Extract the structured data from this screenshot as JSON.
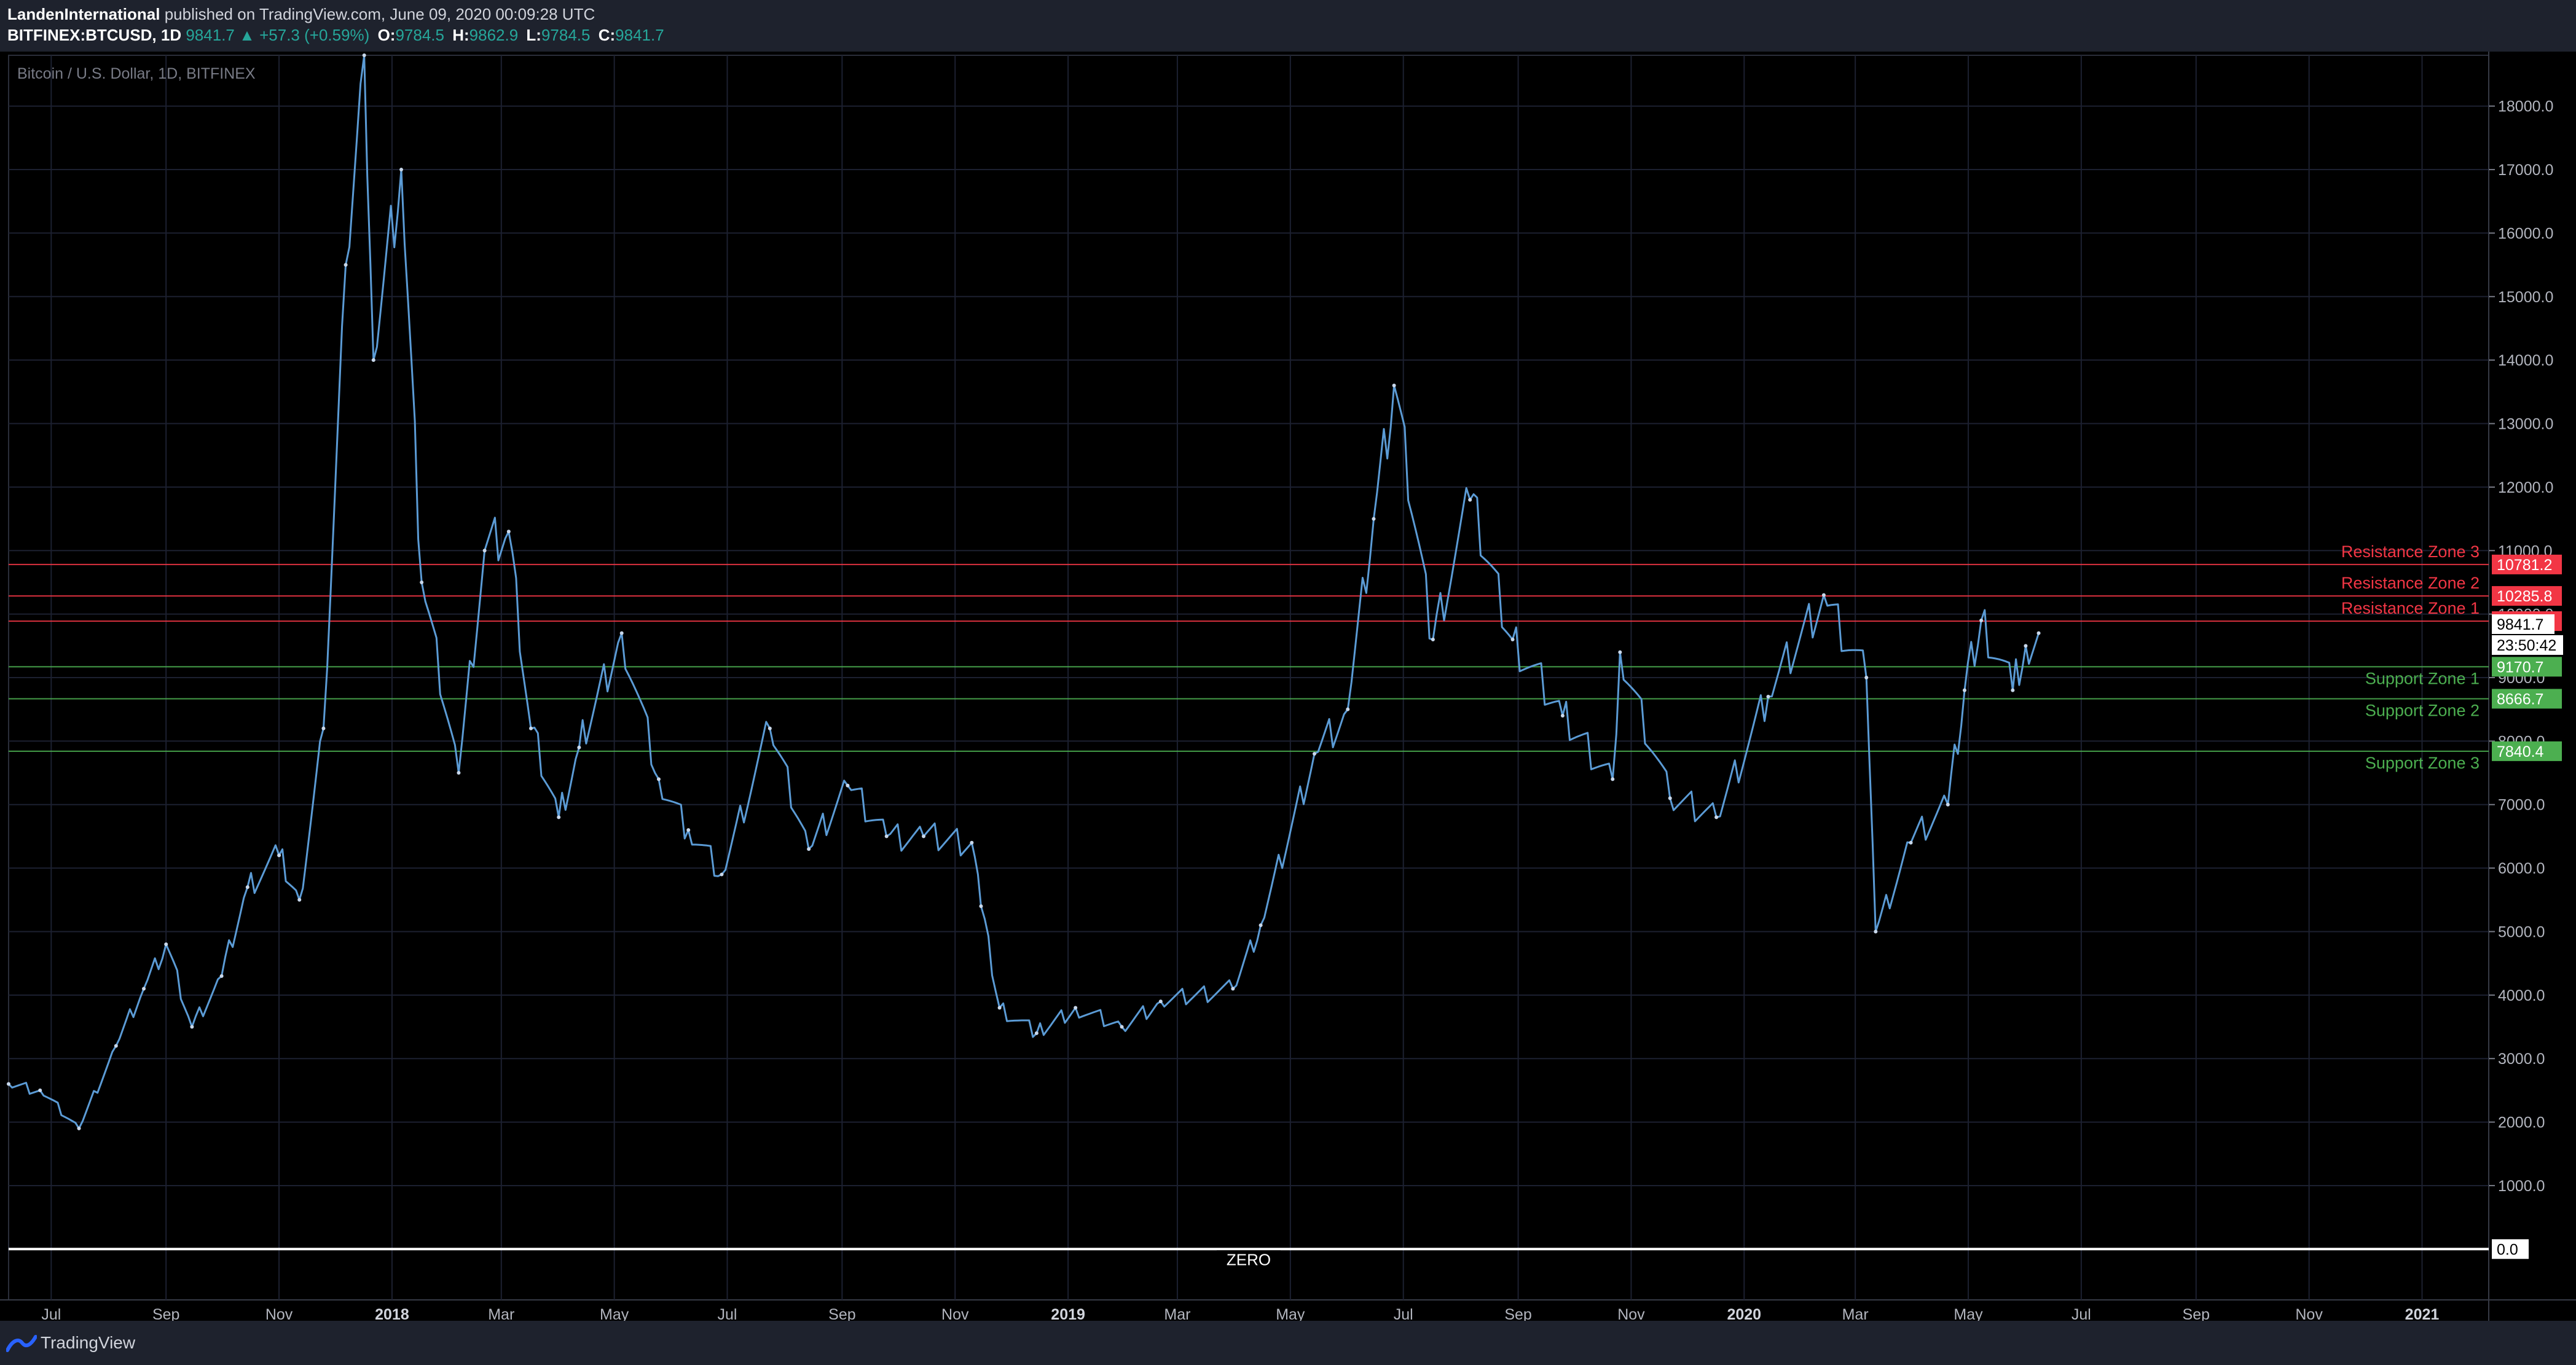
{
  "header": {
    "author": "LandenInternational",
    "published_text": "published on TradingView.com, June 09, 2020 00:09:28 UTC",
    "symbol": "BITFINEX:BTCUSD, 1D",
    "last": "9841.7",
    "change_arrow": "▲",
    "change": "+57.3 (+0.59%)",
    "open_label": "O:",
    "open": "9784.5",
    "high_label": "H:",
    "high": "9862.9",
    "low_label": "L:",
    "low": "9784.5",
    "close_label": "C:",
    "close": "9841.7"
  },
  "chart_data": {
    "type": "line",
    "title": "Bitcoin / U.S. Dollar, 1D, BITFINEX",
    "xlabel": "",
    "ylabel": "",
    "ylim": [
      -800,
      18800
    ],
    "y_ticks": [
      "18000.0",
      "17000.0",
      "16000.0",
      "15000.0",
      "14000.0",
      "13000.0",
      "12000.0",
      "11000.0",
      "10000.0",
      "9000.0",
      "8000.0",
      "7000.0",
      "6000.0",
      "5000.0",
      "4000.0",
      "3000.0",
      "2000.0",
      "1000.0"
    ],
    "y_tick_values": [
      18000,
      17000,
      16000,
      15000,
      14000,
      13000,
      12000,
      11000,
      10000,
      9000,
      8000,
      7000,
      6000,
      5000,
      4000,
      3000,
      2000,
      1000
    ],
    "x_ticks": [
      "Jul",
      "Sep",
      "Nov",
      "2018",
      "Mar",
      "May",
      "Jul",
      "Sep",
      "Nov",
      "2019",
      "Mar",
      "May",
      "Jul",
      "Sep",
      "Nov",
      "2020",
      "Mar",
      "May",
      "Jul",
      "Sep",
      "Nov",
      "2021"
    ],
    "x_tick_dates": [
      "2017-07-01",
      "2017-09-01",
      "2017-11-01",
      "2018-01-01",
      "2018-03-01",
      "2018-05-01",
      "2018-07-01",
      "2018-09-01",
      "2018-11-01",
      "2019-01-01",
      "2019-03-01",
      "2019-05-01",
      "2019-07-01",
      "2019-09-01",
      "2019-11-01",
      "2020-01-01",
      "2020-03-01",
      "2020-05-01",
      "2020-07-01",
      "2020-09-01",
      "2020-11-01",
      "2021-01-01"
    ],
    "x_range": [
      "2017-06-08",
      "2021-02-06"
    ],
    "grid": true,
    "series": [
      {
        "color": "#5b9bd5",
        "dates": [
          "2017-06-08",
          "2017-06-25",
          "2017-07-16",
          "2017-08-05",
          "2017-08-20",
          "2017-09-01",
          "2017-09-15",
          "2017-10-01",
          "2017-10-15",
          "2017-11-01",
          "2017-11-12",
          "2017-11-25",
          "2017-12-07",
          "2017-12-17",
          "2017-12-22",
          "2018-01-06",
          "2018-01-17",
          "2018-02-06",
          "2018-02-20",
          "2018-03-05",
          "2018-03-17",
          "2018-04-01",
          "2018-04-12",
          "2018-05-05",
          "2018-05-25",
          "2018-06-10",
          "2018-06-28",
          "2018-07-24",
          "2018-08-14",
          "2018-09-04",
          "2018-09-25",
          "2018-10-15",
          "2018-11-10",
          "2018-11-15",
          "2018-11-25",
          "2018-12-15",
          "2019-01-05",
          "2019-01-30",
          "2019-02-20",
          "2019-03-31",
          "2019-04-15",
          "2019-05-14",
          "2019-06-01",
          "2019-06-15",
          "2019-06-26",
          "2019-07-17",
          "2019-08-06",
          "2019-08-29",
          "2019-09-25",
          "2019-10-22",
          "2019-10-26",
          "2019-11-22",
          "2019-12-17",
          "2020-01-14",
          "2020-02-13",
          "2020-03-07",
          "2020-03-12",
          "2020-03-31",
          "2020-04-20",
          "2020-04-29",
          "2020-05-08",
          "2020-05-25",
          "2020-06-01",
          "2020-06-08"
        ],
        "values": [
          2600,
          2500,
          1900,
          3200,
          4100,
          4800,
          3500,
          4300,
          5700,
          6200,
          5500,
          8200,
          15500,
          18800,
          14000,
          17000,
          10500,
          7500,
          11000,
          11300,
          8200,
          6800,
          7900,
          9700,
          7400,
          6600,
          5900,
          8200,
          6300,
          7300,
          6500,
          6500,
          6400,
          5400,
          3800,
          3400,
          3800,
          3500,
          3900,
          4100,
          5100,
          7800,
          8500,
          11500,
          13600,
          9600,
          11800,
          9600,
          8400,
          7400,
          9400,
          7100,
          6800,
          8700,
          10300,
          9000,
          5000,
          6400,
          7000,
          8800,
          9900,
          8800,
          9500,
          9700
        ]
      }
    ],
    "levels": [
      {
        "name": "Resistance Zone 3",
        "value": 10781.2,
        "label": "10781.2",
        "color": "#f23645"
      },
      {
        "name": "Resistance Zone 2",
        "value": 10285.8,
        "label": "10285.8",
        "color": "#f23645"
      },
      {
        "name": "Resistance Zone 1",
        "value": 9889.2,
        "label": "9889.2",
        "color": "#f23645"
      },
      {
        "name": "Support Zone 1",
        "value": 9170.7,
        "label": "9170.7",
        "color": "#4caf50"
      },
      {
        "name": "Support Zone 2",
        "value": 8666.7,
        "label": "8666.7",
        "color": "#4caf50"
      },
      {
        "name": "Support Zone 3",
        "value": 7840.4,
        "label": "7840.4",
        "color": "#4caf50"
      },
      {
        "name": "ZERO",
        "value": 0,
        "label": "0.0",
        "color": "#ffffff"
      }
    ],
    "last_price": {
      "value": 9841.7,
      "label": "9841.7",
      "countdown": "23:50:42"
    }
  },
  "footer": {
    "brand": "TradingView"
  },
  "colors": {
    "up": "#26a69a",
    "resistance": "#f23645",
    "support": "#4caf50",
    "price": "#5b9bd5"
  }
}
